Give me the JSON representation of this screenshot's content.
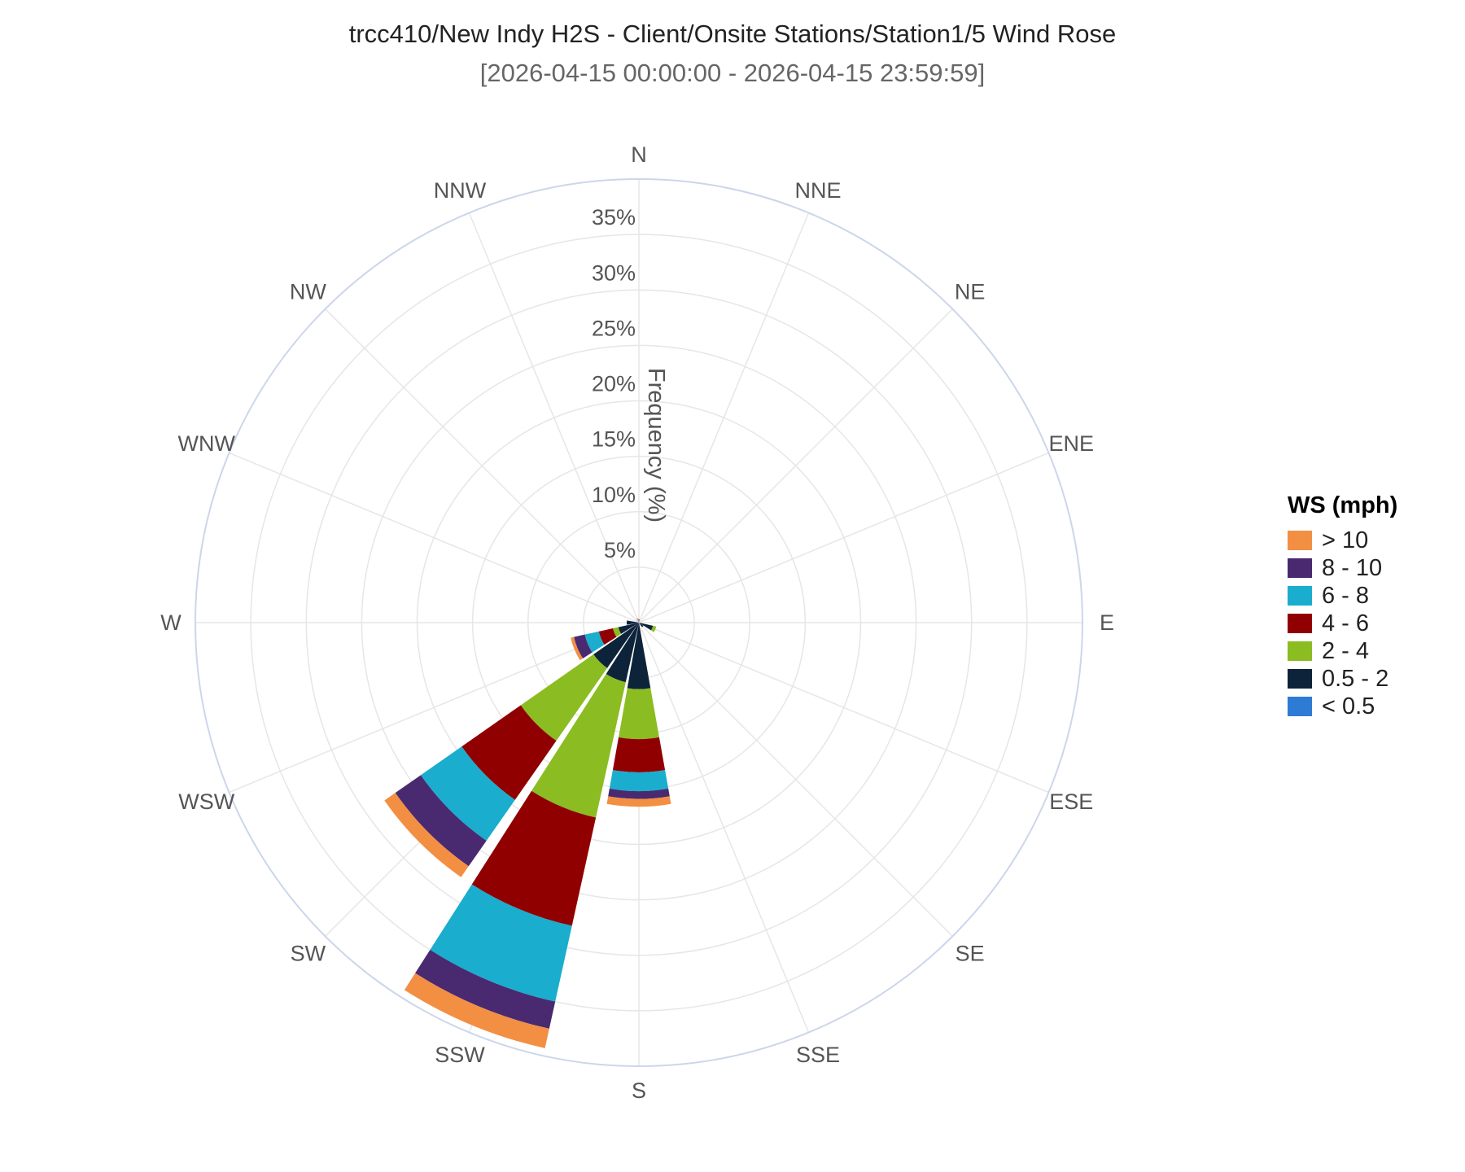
{
  "chart_data": {
    "type": "windrose",
    "title": "trcc410/New Indy H2S - Client/Onsite Stations/Station1/5 Wind Rose",
    "subtitle": "[2026-04-15 00:00:00 - 2026-04-15 23:59:59]",
    "radial_axis_label": "Frequency (%)",
    "radial_range": [
      0,
      40
    ],
    "radial_ticks": [
      5,
      10,
      15,
      20,
      25,
      30,
      35
    ],
    "radial_tick_labels": [
      "5%",
      "10%",
      "15%",
      "20%",
      "25%",
      "30%",
      "35%"
    ],
    "directions": [
      "N",
      "NNE",
      "NE",
      "ENE",
      "E",
      "ESE",
      "SE",
      "SSE",
      "S",
      "SSW",
      "SW",
      "WSW",
      "W",
      "WNW",
      "NW",
      "NNW"
    ],
    "legend_title": "WS (mph)",
    "legend_placement": "right",
    "series": [
      {
        "name": "< 0.5",
        "color": "#2e7bd6",
        "values": [
          0.2,
          0.1,
          0,
          0,
          0,
          0.1,
          0.1,
          0,
          0,
          0,
          0,
          0.1,
          0.1,
          0,
          0,
          0.1
        ]
      },
      {
        "name": "0.5 - 2",
        "color": "#0d233a",
        "values": [
          0.1,
          0,
          0,
          0,
          0,
          1.2,
          0.4,
          0,
          6.0,
          5.5,
          5.0,
          1.8,
          1.0,
          0,
          0,
          0
        ]
      },
      {
        "name": "2 - 4",
        "color": "#8bbc21",
        "values": [
          0,
          0,
          0,
          0,
          0,
          0.3,
          0,
          0,
          4.5,
          12.5,
          8.0,
          0.5,
          0,
          0,
          0,
          0
        ]
      },
      {
        "name": "4 - 6",
        "color": "#910000",
        "values": [
          0,
          0,
          0,
          0,
          0,
          0,
          0,
          0,
          3.0,
          10.0,
          6.5,
          1.3,
          0,
          0,
          0,
          0
        ]
      },
      {
        "name": "6 - 8",
        "color": "#1aadce",
        "values": [
          0,
          0,
          0,
          0,
          0,
          0,
          0,
          0,
          1.7,
          7.0,
          4.5,
          1.3,
          0,
          0,
          0,
          0
        ]
      },
      {
        "name": "8 - 10",
        "color": "#492970",
        "values": [
          0,
          0,
          0,
          0,
          0,
          0,
          0,
          0,
          0.7,
          2.5,
          2.8,
          1.0,
          0,
          0,
          0,
          0
        ]
      },
      {
        "name": "> 10",
        "color": "#f28f43",
        "values": [
          0,
          0,
          0,
          0,
          0,
          0,
          0,
          0,
          0.7,
          1.8,
          1.2,
          0.3,
          0,
          0,
          0,
          0.3
        ]
      }
    ]
  }
}
